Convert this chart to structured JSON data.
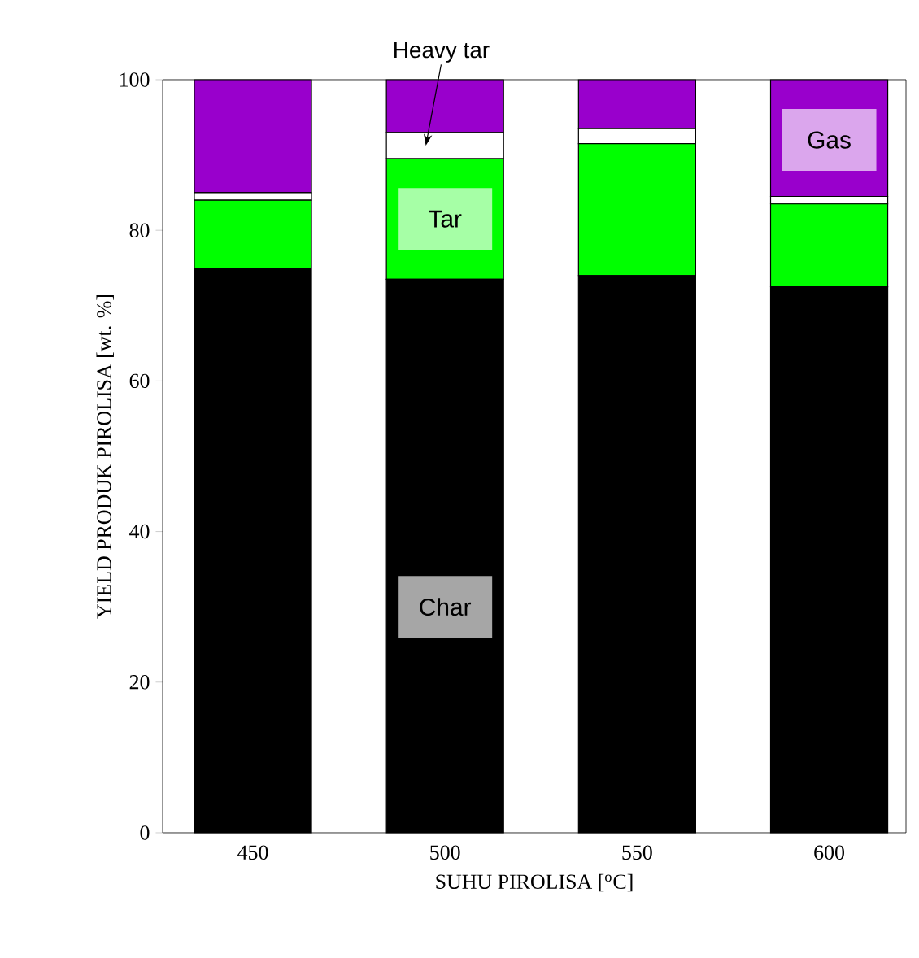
{
  "chart_data": {
    "type": "bar",
    "stacked": true,
    "xlabel": "SUHU PIROLISA [$^{o}$C]",
    "ylabel": "YIELD PRODUK PIROLISA [wt. %]",
    "categories": [
      "450",
      "500",
      "550",
      "600"
    ],
    "series": [
      {
        "name": "Char",
        "color": "#000000",
        "values": [
          75,
          73.5,
          74,
          72.5
        ]
      },
      {
        "name": "Tar",
        "color": "#00ff00",
        "values": [
          9,
          16,
          17.5,
          11
        ]
      },
      {
        "name": "Heavy tar",
        "color": "#ffffff",
        "values": [
          1,
          3.5,
          2,
          1
        ]
      },
      {
        "name": "Gas",
        "color": "#9900cc",
        "values": [
          15,
          7,
          6.5,
          15.5
        ]
      }
    ],
    "ylim": [
      0,
      100
    ],
    "yticks": [
      0,
      20,
      40,
      60,
      80,
      100
    ],
    "legend": false,
    "grid": false
  }
}
